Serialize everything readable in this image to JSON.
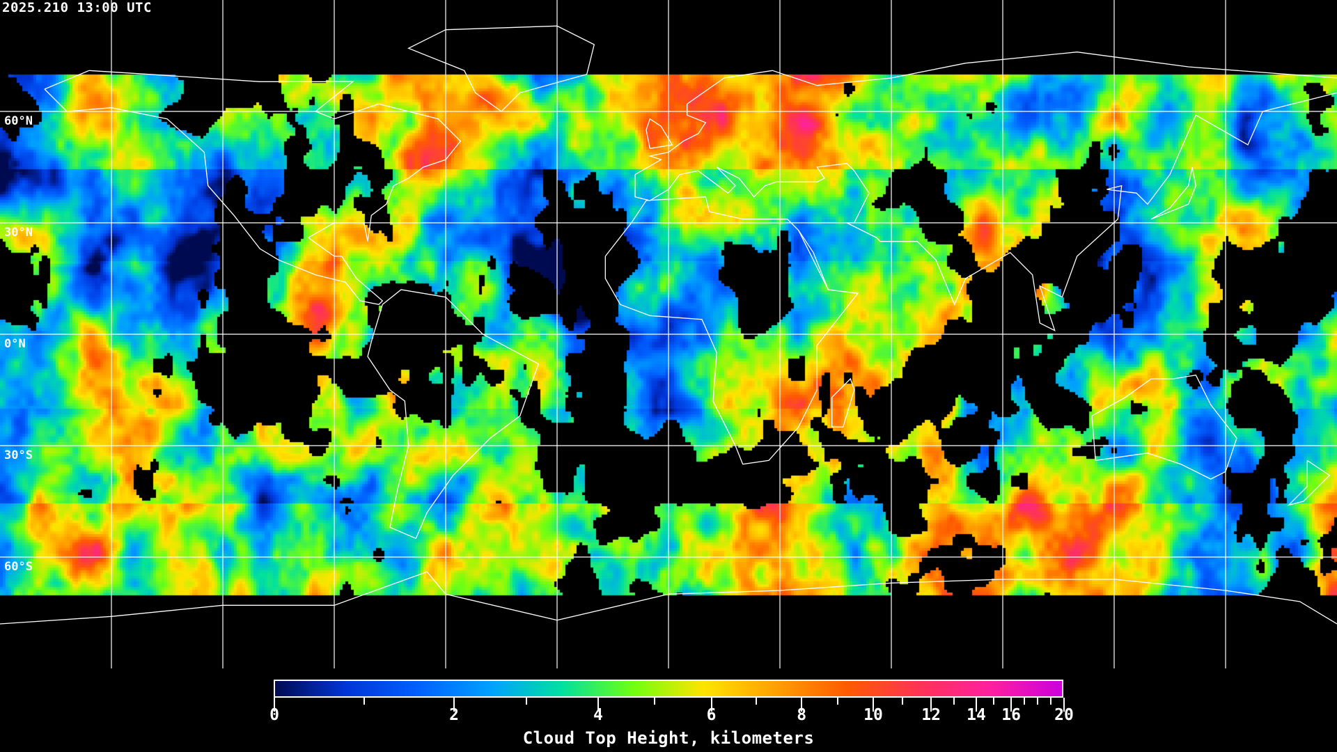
{
  "header": {
    "timestamp": "2025.210 13:00 UTC"
  },
  "map": {
    "projection": "equirectangular",
    "center_longitude": 0,
    "gridline_spacing_degrees": 30,
    "data_coverage_latitude": [
      -70,
      70
    ],
    "latitude_labels": [
      {
        "lat": 60,
        "text": "60°N"
      },
      {
        "lat": 30,
        "text": "30°N"
      },
      {
        "lat": 0,
        "text": "0°N"
      },
      {
        "lat": -30,
        "text": "30°S"
      },
      {
        "lat": -60,
        "text": "60°S"
      }
    ],
    "coastline_color": "#ffffff",
    "gridline_color": "#ffffff",
    "clear_sky_color": "#000000"
  },
  "colorbar": {
    "title": "Cloud Top Height, kilometers",
    "min": 0,
    "max": 20,
    "scale": "nonlinear",
    "tick_labels": [
      "0",
      "2",
      "4",
      "6",
      "8",
      "10",
      "12",
      "14",
      "16",
      "20"
    ],
    "minor_ticks": [
      1,
      3,
      5,
      7,
      9,
      11,
      13,
      15,
      17,
      18,
      19
    ],
    "colors": [
      "#000a50",
      "#0035d8",
      "#0060ff",
      "#00a0ff",
      "#00e0a0",
      "#70ff10",
      "#ffe400",
      "#ffa000",
      "#ff5a00",
      "#ff3355",
      "#ff20a0",
      "#cc00dd"
    ]
  }
}
